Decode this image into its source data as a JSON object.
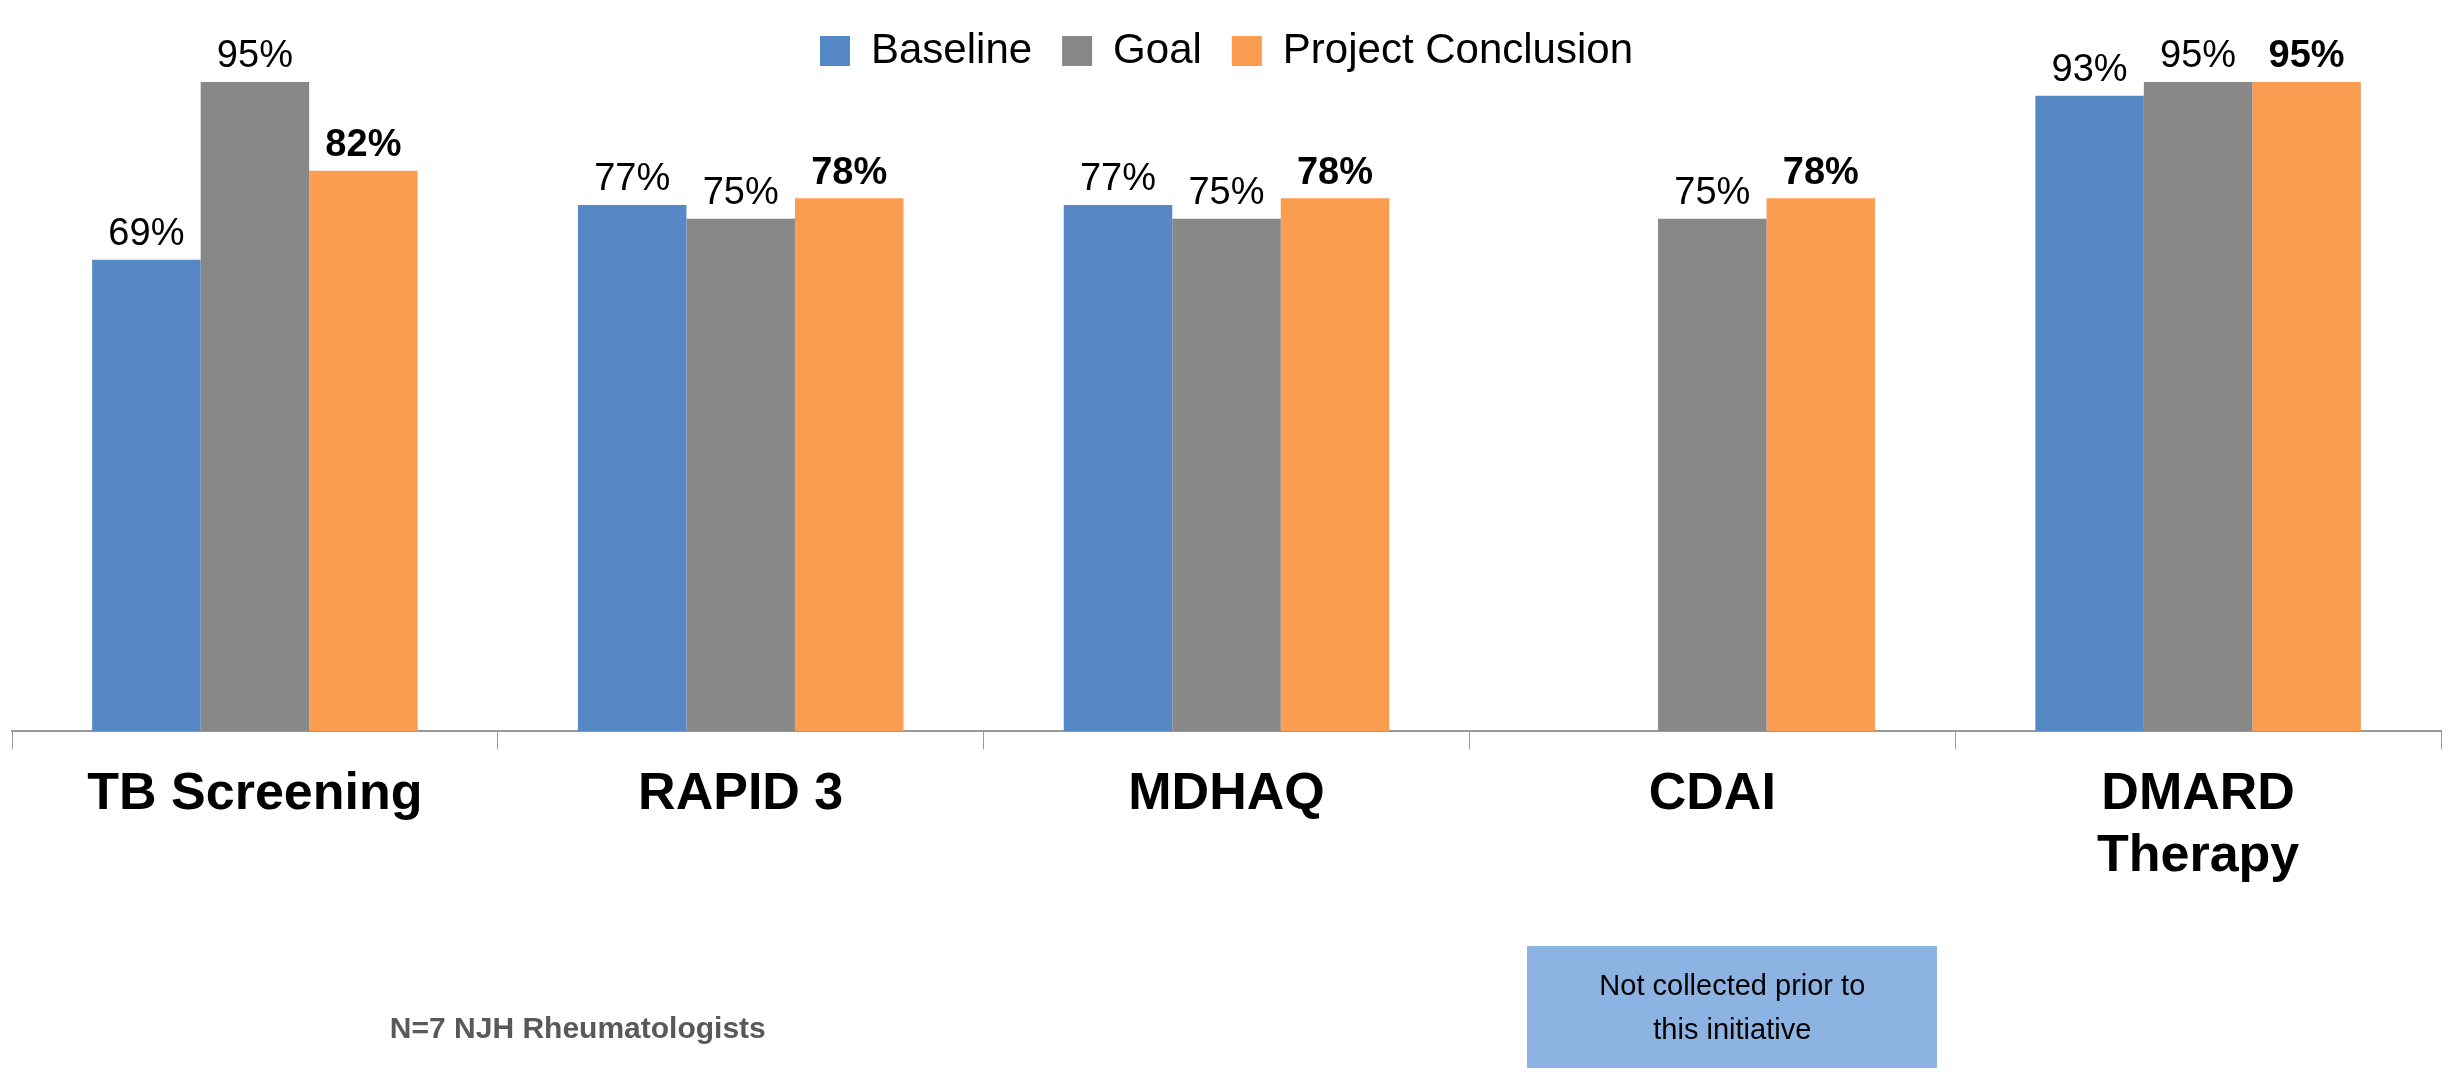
{
  "chart_data": {
    "type": "bar",
    "categories": [
      "TB Screening",
      "RAPID 3",
      "MDHAQ",
      "CDAI",
      "DMARD Therapy"
    ],
    "series": [
      {
        "name": "Baseline",
        "color": "#5588c4",
        "values": [
          69,
          77,
          77,
          null,
          93
        ],
        "value_labels": [
          "69%",
          "77%",
          "77%",
          null,
          "93%"
        ]
      },
      {
        "name": "Goal",
        "color": "#888888",
        "values": [
          95,
          75,
          75,
          75,
          95
        ],
        "value_labels": [
          "95%",
          "75%",
          "75%",
          "75%",
          "95%"
        ]
      },
      {
        "name": "Project Conclusion",
        "color": "#fb9d51",
        "values": [
          82,
          78,
          78,
          78,
          95
        ],
        "value_labels": [
          "82%",
          "78%",
          "78%",
          "78%",
          "95%"
        ]
      }
    ],
    "legend": "top",
    "grid": false,
    "tick_labels": "x",
    "annotations": [
      "N=7 NJH Rheumatologists",
      "Not collected prior to this initiative"
    ]
  }
}
